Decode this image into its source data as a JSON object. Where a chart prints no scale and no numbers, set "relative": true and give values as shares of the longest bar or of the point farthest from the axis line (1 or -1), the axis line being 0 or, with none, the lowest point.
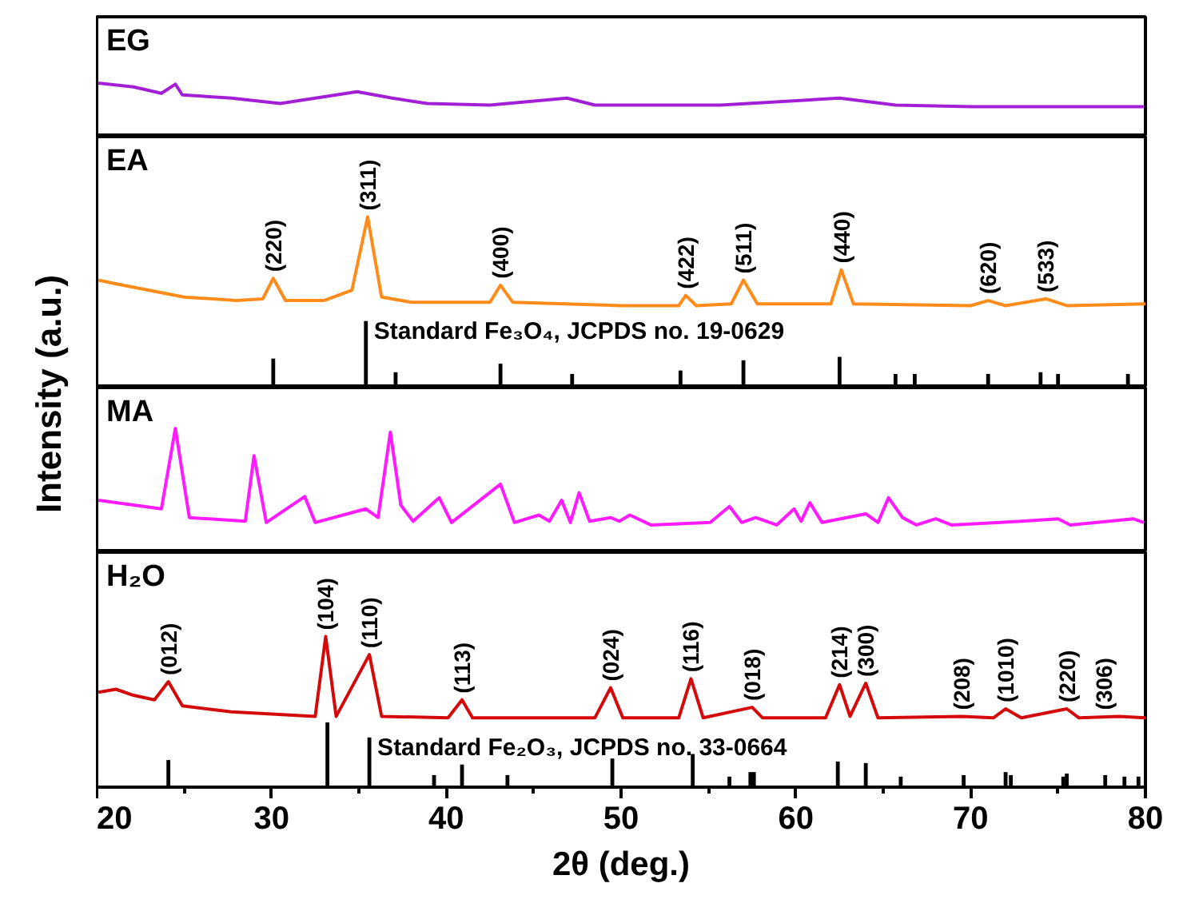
{
  "chart_data": [
    {
      "type": "line",
      "title": "EG",
      "relative": true,
      "xlim": [
        20,
        80
      ],
      "tick_labels": false,
      "ylabel": "Intensity (a.u.)",
      "series": [
        {
          "color": "#a31fd6",
          "x": [
            20.1,
            22.1,
            23.7,
            24.5,
            24.9,
            27.7,
            30.5,
            34.9,
            36.9,
            38.9,
            42.5,
            46.9,
            48.5,
            55.7,
            62.5,
            65.7,
            70.1,
            79.9
          ],
          "values": [
            1.0,
            0.93,
            0.81,
            0.98,
            0.78,
            0.72,
            0.62,
            0.84,
            0.72,
            0.62,
            0.59,
            0.72,
            0.59,
            0.59,
            0.72,
            0.59,
            0.56,
            0.56
          ]
        }
      ]
    },
    {
      "type": "line",
      "title": "EA",
      "relative": true,
      "xlim": [
        20,
        80
      ],
      "tick_labels": false,
      "series": [
        {
          "color": "#ff8c1a",
          "x": [
            20.1,
            21,
            25,
            28,
            29.5,
            30.1,
            30.8,
            33,
            34.6,
            35.5,
            36.3,
            38,
            42.5,
            43.1,
            43.8,
            50,
            53.3,
            53.7,
            54.3,
            56.3,
            57.0,
            57.8,
            62.0,
            62.6,
            63.3,
            70,
            71.0,
            72,
            74.3,
            75.5,
            80
          ],
          "values": [
            0.63,
            0.61,
            0.53,
            0.51,
            0.52,
            0.64,
            0.51,
            0.51,
            0.57,
            1.0,
            0.53,
            0.5,
            0.5,
            0.6,
            0.5,
            0.48,
            0.48,
            0.54,
            0.48,
            0.49,
            0.63,
            0.49,
            0.49,
            0.69,
            0.49,
            0.48,
            0.51,
            0.48,
            0.52,
            0.48,
            0.49
          ]
        },
        {
          "type": "bar",
          "name": "Standard Fe₃O₄, JCPDS no. 19-0629",
          "color": "#000000",
          "x": [
            30.1,
            35.4,
            37.1,
            43.1,
            47.2,
            53.4,
            57.0,
            62.5,
            65.7,
            66.8,
            71.0,
            74.0,
            75.0,
            79.0
          ],
          "values": [
            0.17,
            0.39,
            0.09,
            0.14,
            0.08,
            0.1,
            0.16,
            0.18,
            0.08,
            0.08,
            0.08,
            0.09,
            0.08,
            0.08
          ]
        }
      ],
      "annotations": [
        {
          "text": "(220)",
          "x": 30.1,
          "y": 0.64
        },
        {
          "text": "(311)",
          "x": 35.5,
          "y": 1.0
        },
        {
          "text": "(400)",
          "x": 43.1,
          "y": 0.6
        },
        {
          "text": "(422)",
          "x": 53.7,
          "y": 0.54
        },
        {
          "text": "(511)",
          "x": 57.0,
          "y": 0.63
        },
        {
          "text": "(440)",
          "x": 62.6,
          "y": 0.69
        },
        {
          "text": "(620)",
          "x": 71.0,
          "y": 0.51
        },
        {
          "text": "(533)",
          "x": 74.3,
          "y": 0.52
        }
      ]
    },
    {
      "type": "line",
      "title": "MA",
      "relative": true,
      "xlim": [
        20,
        80
      ],
      "tick_labels": false,
      "series": [
        {
          "color": "#ff1aff",
          "x": [
            20.1,
            23.7,
            24.5,
            25.3,
            28.5,
            29.0,
            29.7,
            31.9,
            32.5,
            35.4,
            36.1,
            36.8,
            37.4,
            38.1,
            39.6,
            40.3,
            43.1,
            43.9,
            45.3,
            45.9,
            46.6,
            47.1,
            47.6,
            48.2,
            49.4,
            49.9,
            50.5,
            51.7,
            55.1,
            56.2,
            56.9,
            57.7,
            58.9,
            59.9,
            60.3,
            60.8,
            61.5,
            64.0,
            64.7,
            65.3,
            66.1,
            66.9,
            68.0,
            68.9,
            71.7,
            75.0,
            75.7,
            79.3,
            79.9
          ],
          "values": [
            0.42,
            0.35,
            1.0,
            0.28,
            0.25,
            0.78,
            0.24,
            0.45,
            0.24,
            0.35,
            0.28,
            0.97,
            0.38,
            0.25,
            0.44,
            0.24,
            0.55,
            0.24,
            0.3,
            0.25,
            0.42,
            0.24,
            0.48,
            0.25,
            0.28,
            0.25,
            0.3,
            0.22,
            0.24,
            0.37,
            0.24,
            0.28,
            0.22,
            0.35,
            0.25,
            0.4,
            0.24,
            0.31,
            0.24,
            0.44,
            0.28,
            0.22,
            0.27,
            0.22,
            0.24,
            0.27,
            0.22,
            0.27,
            0.24
          ]
        }
      ]
    },
    {
      "type": "line",
      "title": "H₂O",
      "relative": true,
      "xlim": [
        20,
        80
      ],
      "xticks": [
        20,
        30,
        40,
        50,
        60,
        70,
        80
      ],
      "tick_labels": "x",
      "xlabel": "2θ (deg.)",
      "series": [
        {
          "color": "#d40a0a",
          "x": [
            20.1,
            21.1,
            22.1,
            23.3,
            24.1,
            24.9,
            27.7,
            32.5,
            33.1,
            33.7,
            35.6,
            36.3,
            40.1,
            40.9,
            41.5,
            48.5,
            49.4,
            50.1,
            53.3,
            54.0,
            54.7,
            57.5,
            58.1,
            61.7,
            62.5,
            63.1,
            64.0,
            64.7,
            69.5,
            71.3,
            72.0,
            72.9,
            75.5,
            76.2,
            78.5,
            80
          ],
          "values": [
            0.63,
            0.65,
            0.61,
            0.58,
            0.7,
            0.54,
            0.5,
            0.47,
            1.0,
            0.47,
            0.88,
            0.47,
            0.46,
            0.58,
            0.46,
            0.46,
            0.66,
            0.46,
            0.46,
            0.72,
            0.46,
            0.53,
            0.46,
            0.46,
            0.68,
            0.47,
            0.69,
            0.46,
            0.47,
            0.46,
            0.52,
            0.46,
            0.52,
            0.46,
            0.47,
            0.46
          ]
        },
        {
          "type": "bar",
          "name": "Standard Fe₂O₃, JCPDS no. 33-0664",
          "color": "#000000",
          "x": [
            24.1,
            33.2,
            35.6,
            39.3,
            40.9,
            43.5,
            49.5,
            54.1,
            56.2,
            57.4,
            57.6,
            62.4,
            64.0,
            66.0,
            69.6,
            72.0,
            72.3,
            75.3,
            75.5,
            77.7,
            78.8,
            79.6
          ],
          "values": [
            0.18,
            0.43,
            0.33,
            0.08,
            0.15,
            0.08,
            0.19,
            0.22,
            0.07,
            0.1,
            0.1,
            0.17,
            0.16,
            0.07,
            0.08,
            0.1,
            0.08,
            0.07,
            0.09,
            0.08,
            0.07,
            0.07
          ]
        }
      ],
      "annotations": [
        {
          "text": "(012)",
          "x": 24.1,
          "y": 0.7
        },
        {
          "text": "(104)",
          "x": 33.1,
          "y": 1.0
        },
        {
          "text": "(110)",
          "x": 35.6,
          "y": 0.88
        },
        {
          "text": "(113)",
          "x": 40.9,
          "y": 0.58
        },
        {
          "text": "(024)",
          "x": 49.4,
          "y": 0.66
        },
        {
          "text": "(116)",
          "x": 54.0,
          "y": 0.72
        },
        {
          "text": "(018)",
          "x": 57.5,
          "y": 0.53
        },
        {
          "text": "(214)",
          "x": 62.5,
          "y": 0.68
        },
        {
          "text": "(300)",
          "x": 64.0,
          "y": 0.69
        },
        {
          "text": "(208)",
          "x": 69.5,
          "y": 0.47
        },
        {
          "text": "(1010)",
          "x": 72.0,
          "y": 0.52
        },
        {
          "text": "(220)",
          "x": 75.5,
          "y": 0.52
        },
        {
          "text": "(306)",
          "x": 77.6,
          "y": 0.47
        }
      ]
    }
  ]
}
